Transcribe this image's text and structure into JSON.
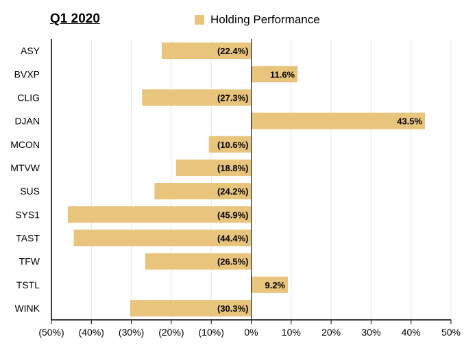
{
  "chart_data": {
    "type": "bar",
    "orientation": "horizontal",
    "title": "Q1 2020",
    "legend": {
      "position": "top",
      "entries": [
        "Holding Performance"
      ]
    },
    "categories": [
      "ASY",
      "BVXP",
      "CLIG",
      "DJAN",
      "MCON",
      "MTVW",
      "SUS",
      "SYS1",
      "TAST",
      "TFW",
      "TSTL",
      "WINK"
    ],
    "series": [
      {
        "name": "Holding Performance",
        "color": "#e8c47c",
        "values": [
          -22.4,
          11.6,
          -27.3,
          43.5,
          -10.6,
          -18.8,
          -24.2,
          -45.9,
          -44.4,
          -26.5,
          9.2,
          -30.3
        ],
        "labels": [
          "(22.4%)",
          "11.6%",
          "(27.3%)",
          "43.5%",
          "(10.6%)",
          "(18.8%)",
          "(24.2%)",
          "(45.9%)",
          "(44.4%)",
          "(26.5%)",
          "9.2%",
          "(30.3%)"
        ]
      }
    ],
    "xlim": [
      -50,
      50
    ],
    "xticks": [
      -50,
      -40,
      -30,
      -20,
      -10,
      0,
      10,
      20,
      30,
      40,
      50
    ],
    "xtick_labels": [
      "(50%)",
      "(40%)",
      "(30%)",
      "(20%)",
      "(10%)",
      "0%",
      "10%",
      "20%",
      "30%",
      "40%",
      "50%"
    ],
    "grid": true
  }
}
